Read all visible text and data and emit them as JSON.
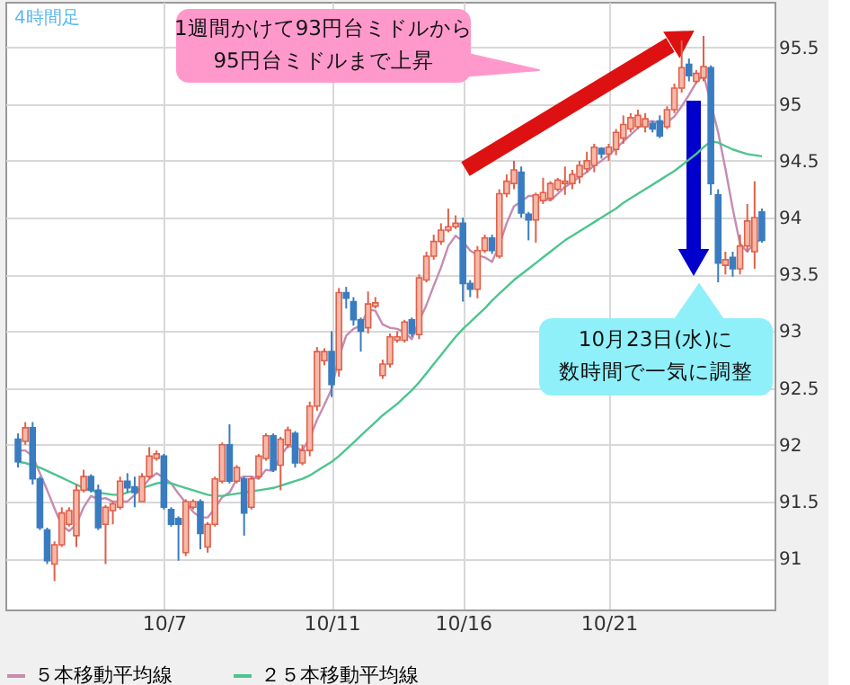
{
  "chart_data": {
    "type": "candlestick",
    "title": "4時間足",
    "categories": [
      null,
      null,
      null,
      null,
      null,
      null,
      null,
      null,
      null,
      null,
      null,
      null,
      null,
      null,
      null,
      null,
      null,
      null,
      null,
      null,
      "10/7",
      null,
      null,
      null,
      null,
      null,
      null,
      null,
      null,
      null,
      null,
      null,
      null,
      null,
      null,
      null,
      null,
      null,
      null,
      null,
      null,
      null,
      null,
      "10/11",
      null,
      null,
      null,
      null,
      null,
      null,
      null,
      null,
      null,
      null,
      null,
      null,
      null,
      null,
      null,
      null,
      null,
      "10/16",
      null,
      null,
      null,
      null,
      null,
      null,
      null,
      null,
      null,
      null,
      null,
      null,
      null,
      null,
      null,
      null,
      null,
      null,
      null,
      "10/21",
      null,
      null,
      null,
      null,
      null,
      null,
      null,
      null,
      null,
      null,
      null,
      null,
      null,
      null,
      null,
      null,
      null,
      null,
      null,
      null,
      null
    ],
    "ohlc": [
      [
        92.05,
        92.1,
        91.8,
        91.85
      ],
      [
        92.03,
        92.2,
        92.0,
        92.15
      ],
      [
        92.15,
        92.2,
        91.65,
        91.7
      ],
      [
        91.7,
        91.72,
        91.25,
        91.27
      ],
      [
        91.25,
        91.27,
        90.95,
        90.98
      ],
      [
        90.95,
        91.15,
        90.8,
        91.12
      ],
      [
        91.12,
        91.45,
        91.1,
        91.4
      ],
      [
        91.3,
        91.45,
        91.28,
        91.42
      ],
      [
        91.2,
        91.65,
        91.1,
        91.6
      ],
      [
        91.6,
        91.78,
        91.58,
        91.72
      ],
      [
        91.72,
        91.74,
        91.58,
        91.6
      ],
      [
        91.6,
        91.65,
        91.25,
        91.27
      ],
      [
        91.3,
        91.47,
        90.95,
        91.45
      ],
      [
        91.42,
        91.5,
        91.3,
        91.48
      ],
      [
        91.45,
        91.72,
        91.43,
        91.68
      ],
      [
        91.68,
        91.75,
        91.58,
        91.62
      ],
      [
        91.63,
        91.72,
        91.45,
        91.58
      ],
      [
        91.5,
        91.75,
        91.5,
        91.72
      ],
      [
        91.72,
        91.98,
        91.7,
        91.9
      ],
      [
        91.88,
        91.95,
        91.86,
        91.92
      ],
      [
        91.9,
        91.92,
        91.43,
        91.45
      ],
      [
        91.43,
        91.45,
        91.28,
        91.3
      ],
      [
        91.35,
        91.37,
        90.98,
        91.3
      ],
      [
        91.05,
        91.52,
        91.02,
        91.5
      ],
      [
        91.45,
        91.52,
        91.43,
        91.5
      ],
      [
        91.5,
        91.52,
        91.08,
        91.22
      ],
      [
        91.1,
        91.32,
        91.05,
        91.3
      ],
      [
        91.3,
        91.72,
        91.28,
        91.7
      ],
      [
        91.68,
        92.02,
        91.66,
        92.0
      ],
      [
        92.0,
        92.18,
        91.66,
        91.68
      ],
      [
        91.68,
        91.82,
        91.66,
        91.8
      ],
      [
        91.7,
        91.72,
        91.2,
        91.4
      ],
      [
        91.45,
        91.72,
        91.43,
        91.7
      ],
      [
        91.72,
        91.92,
        91.7,
        91.9
      ],
      [
        91.88,
        92.1,
        91.86,
        92.08
      ],
      [
        92.08,
        92.1,
        91.76,
        91.78
      ],
      [
        91.82,
        92.07,
        91.6,
        92.05
      ],
      [
        92.0,
        92.16,
        91.97,
        92.13
      ],
      [
        92.1,
        92.12,
        91.8,
        91.84
      ],
      [
        91.84,
        92.0,
        91.82,
        91.95
      ],
      [
        91.95,
        92.38,
        91.9,
        92.34
      ],
      [
        92.34,
        92.86,
        92.3,
        92.82
      ],
      [
        92.74,
        92.85,
        92.7,
        92.82
      ],
      [
        92.82,
        93.0,
        92.42,
        92.53
      ],
      [
        92.66,
        93.38,
        92.6,
        93.34
      ],
      [
        93.34,
        93.39,
        93.2,
        93.29
      ],
      [
        93.26,
        93.3,
        93.05,
        93.1
      ],
      [
        93.1,
        93.12,
        92.82,
        93.0
      ],
      [
        93.03,
        93.35,
        92.98,
        93.24
      ],
      [
        93.22,
        93.3,
        93.2,
        93.25
      ],
      [
        92.61,
        92.75,
        92.58,
        92.71
      ],
      [
        92.71,
        92.98,
        92.68,
        92.95
      ],
      [
        92.92,
        93.0,
        92.9,
        92.95
      ],
      [
        92.92,
        93.1,
        92.9,
        93.08
      ],
      [
        93.1,
        93.12,
        92.95,
        92.98
      ],
      [
        92.97,
        93.5,
        92.93,
        93.47
      ],
      [
        93.45,
        93.7,
        93.43,
        93.66
      ],
      [
        93.66,
        93.85,
        93.63,
        93.79
      ],
      [
        93.79,
        93.95,
        93.76,
        93.89
      ],
      [
        93.89,
        94.08,
        93.87,
        93.92
      ],
      [
        93.92,
        94.02,
        93.9,
        93.95
      ],
      [
        93.95,
        94.0,
        93.26,
        93.42
      ],
      [
        93.42,
        93.45,
        93.3,
        93.37
      ],
      [
        93.37,
        93.75,
        93.29,
        93.71
      ],
      [
        93.71,
        93.85,
        93.69,
        93.82
      ],
      [
        93.82,
        93.85,
        93.68,
        93.71
      ],
      [
        93.66,
        94.25,
        93.64,
        94.21
      ],
      [
        94.21,
        94.38,
        94.18,
        94.32
      ],
      [
        94.3,
        94.5,
        94.25,
        94.42
      ],
      [
        94.4,
        94.45,
        94.0,
        94.04
      ],
      [
        94.03,
        94.05,
        93.8,
        93.98
      ],
      [
        93.98,
        94.22,
        93.78,
        94.2
      ],
      [
        94.15,
        94.35,
        94.12,
        94.22
      ],
      [
        94.17,
        94.32,
        94.15,
        94.3
      ],
      [
        94.25,
        94.35,
        94.23,
        94.33
      ],
      [
        94.3,
        94.45,
        94.2,
        94.32
      ],
      [
        94.3,
        94.42,
        94.25,
        94.38
      ],
      [
        94.36,
        94.5,
        94.3,
        94.46
      ],
      [
        94.43,
        94.58,
        94.4,
        94.5
      ],
      [
        94.46,
        94.65,
        94.4,
        94.62
      ],
      [
        94.61,
        94.62,
        94.52,
        94.56
      ],
      [
        94.56,
        94.65,
        94.5,
        94.62
      ],
      [
        94.6,
        94.78,
        94.55,
        94.75
      ],
      [
        94.7,
        94.9,
        94.65,
        94.82
      ],
      [
        94.78,
        94.92,
        94.75,
        94.88
      ],
      [
        94.8,
        94.95,
        94.78,
        94.9
      ],
      [
        94.8,
        94.92,
        94.75,
        94.87
      ],
      [
        94.83,
        94.85,
        94.75,
        94.78
      ],
      [
        94.85,
        94.9,
        94.7,
        94.72
      ],
      [
        94.8,
        94.98,
        94.78,
        94.95
      ],
      [
        94.95,
        95.18,
        94.92,
        95.14
      ],
      [
        95.14,
        95.56,
        95.1,
        95.32
      ],
      [
        95.35,
        95.4,
        95.2,
        95.25
      ],
      [
        95.2,
        95.3,
        95.18,
        95.27
      ],
      [
        95.23,
        95.6,
        95.2,
        95.33
      ],
      [
        95.32,
        95.34,
        94.2,
        94.3
      ],
      [
        94.2,
        94.25,
        93.43,
        93.6
      ],
      [
        93.58,
        93.7,
        93.5,
        93.63
      ],
      [
        93.65,
        93.7,
        93.48,
        93.55
      ],
      [
        93.55,
        93.85,
        93.5,
        93.75
      ],
      [
        93.75,
        94.12,
        93.7,
        93.97
      ],
      [
        93.7,
        94.32,
        93.55,
        94.0
      ],
      [
        94.05,
        94.08,
        93.78,
        93.8
      ]
    ],
    "series": [
      {
        "name": "５本移動平均線",
        "type": "line",
        "color": "#c78bb0",
        "values": [
          91.95,
          91.95,
          91.9,
          91.75,
          91.6,
          91.44,
          91.29,
          91.24,
          91.3,
          91.45,
          91.55,
          91.52,
          91.53,
          91.5,
          91.5,
          91.5,
          91.56,
          91.62,
          91.7,
          91.75,
          91.71,
          91.66,
          91.57,
          91.49,
          91.41,
          91.36,
          91.36,
          91.44,
          91.54,
          91.58,
          91.7,
          91.72,
          91.72,
          91.7,
          91.78,
          91.77,
          91.9,
          91.99,
          91.98,
          91.95,
          92.06,
          92.22,
          92.35,
          92.49,
          92.77,
          92.96,
          93.02,
          93.05,
          93.19,
          93.18,
          93.06,
          93.03,
          93.02,
          92.99,
          92.93,
          93.09,
          93.23,
          93.4,
          93.56,
          93.75,
          93.84,
          93.79,
          93.71,
          93.67,
          93.65,
          93.61,
          93.76,
          93.95,
          94.1,
          94.14,
          94.19,
          94.19,
          94.17,
          94.15,
          94.21,
          94.27,
          94.31,
          94.36,
          94.4,
          94.46,
          94.5,
          94.55,
          94.61,
          94.67,
          94.73,
          94.79,
          94.84,
          94.85,
          94.83,
          94.84,
          94.89,
          94.98,
          95.08,
          95.19,
          95.26,
          null,
          94.75,
          94.43,
          94.08,
          93.77,
          93.7,
          93.78,
          93.81
        ]
      },
      {
        "name": "２５本移動平均線",
        "type": "line",
        "color": "#4cc58e",
        "values": [
          91.85,
          91.84,
          91.82,
          91.8,
          91.77,
          91.74,
          91.71,
          91.68,
          91.65,
          91.62,
          91.6,
          91.58,
          91.57,
          91.56,
          91.56,
          91.58,
          91.6,
          91.62,
          91.64,
          91.66,
          91.67,
          91.66,
          91.64,
          91.62,
          91.6,
          91.58,
          91.56,
          91.55,
          91.55,
          91.56,
          91.57,
          91.58,
          91.59,
          91.6,
          91.61,
          91.62,
          91.64,
          91.66,
          91.68,
          91.7,
          91.73,
          91.77,
          91.81,
          91.85,
          91.9,
          91.96,
          92.02,
          92.08,
          92.14,
          92.2,
          92.26,
          92.31,
          92.36,
          92.42,
          92.48,
          92.55,
          92.63,
          92.71,
          92.79,
          92.87,
          92.95,
          93.02,
          93.08,
          93.14,
          93.2,
          93.27,
          93.33,
          93.39,
          93.45,
          93.5,
          93.55,
          93.6,
          93.65,
          93.7,
          93.75,
          93.8,
          93.84,
          93.88,
          93.92,
          93.96,
          94.0,
          94.04,
          94.08,
          94.13,
          94.17,
          94.21,
          94.25,
          94.29,
          94.33,
          94.37,
          94.41,
          94.46,
          94.51,
          94.56,
          94.62,
          94.67,
          94.66,
          94.63,
          94.6,
          94.58,
          94.56,
          94.55,
          94.54
        ]
      }
    ],
    "ylim": [
      90.55,
      95.9
    ],
    "yticks": [
      91,
      91.5,
      92,
      92.5,
      93,
      93.5,
      94,
      94.5,
      95,
      95.5
    ],
    "grid": true,
    "legend": "bottom",
    "annotations": [
      "1週間かけて93円台ミドルから",
      "95円台ミドルまで上昇",
      "10月23日(水)に",
      "数時間で一気に調整"
    ]
  }
}
